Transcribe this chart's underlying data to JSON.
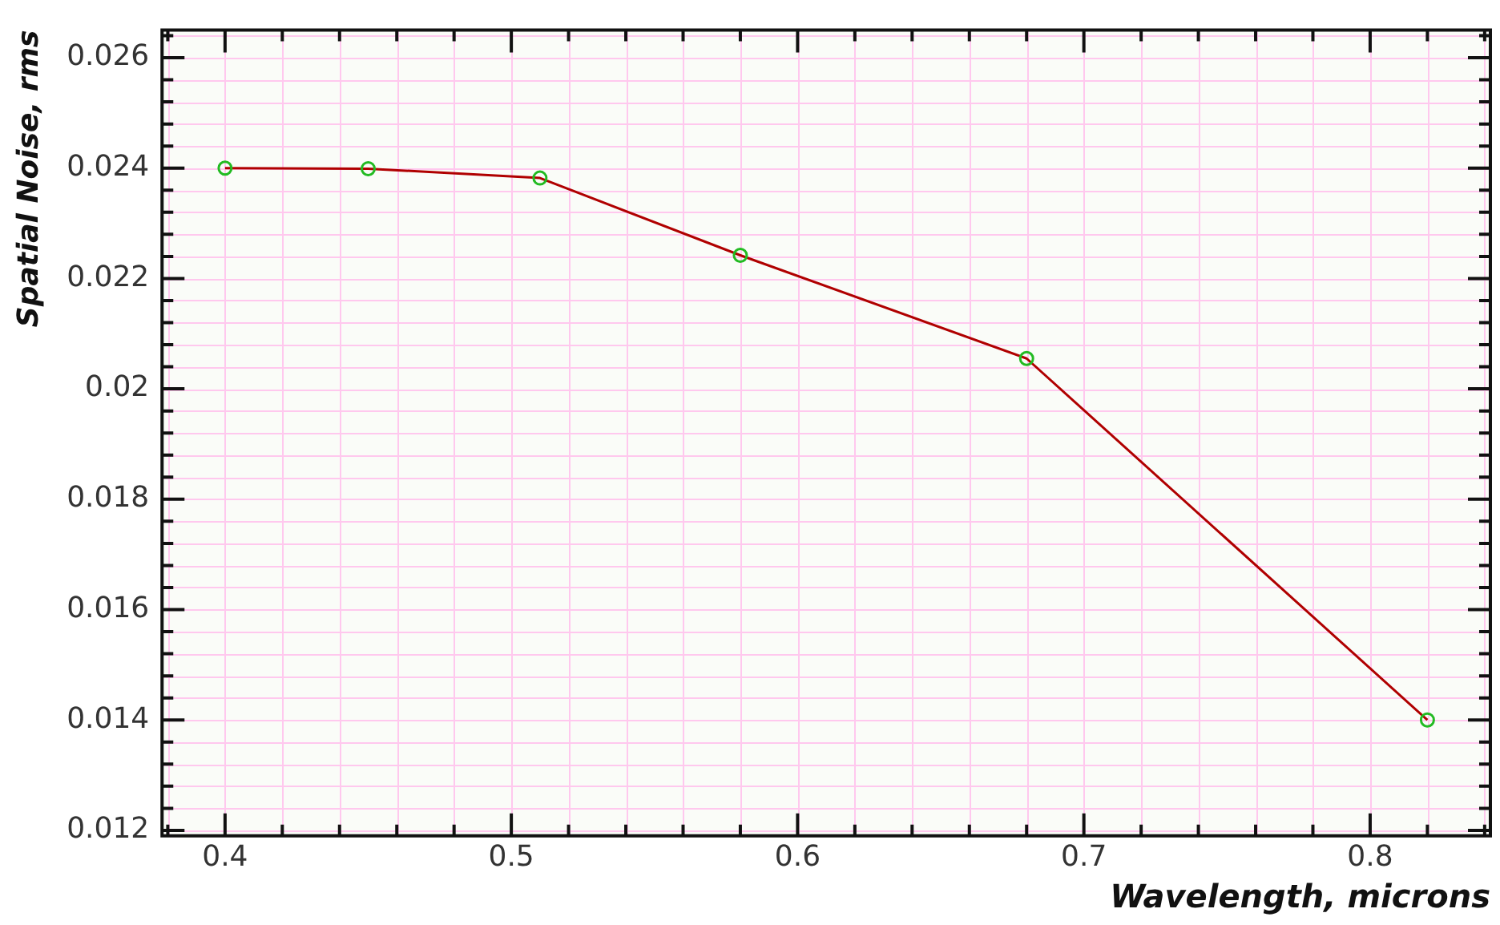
{
  "chart_data": {
    "type": "line",
    "xlabel": "Wavelength, microns",
    "ylabel": "Spatial Noise, rms",
    "x": [
      0.4,
      0.45,
      0.51,
      0.58,
      0.68,
      0.82
    ],
    "series": [
      {
        "color": "#b00000",
        "values": [
          0.024,
          0.02399,
          0.02382,
          0.02242,
          0.02055,
          0.014
        ]
      }
    ],
    "xlim": [
      0.378,
      0.842
    ],
    "xticks": [
      0.4,
      0.5,
      0.6,
      0.7,
      0.8
    ],
    "ylim": [
      0.0119,
      0.0265
    ],
    "yticks": [
      0.012,
      0.014,
      0.016,
      0.018,
      0.02,
      0.022,
      0.024,
      0.026
    ],
    "grid": true,
    "legend": false,
    "marker": "circle",
    "line_style": "solid"
  }
}
